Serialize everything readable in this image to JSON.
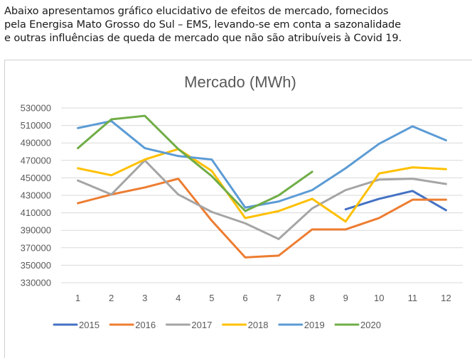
{
  "intro": {
    "lines": [
      "Abaixo apresentamos gráfico elucidativo de efeitos de mercado, fornecidos",
      "pela Energisa Mato Grosso do Sul – EMS, levando-se em conta a sazonalidade",
      "e outras influências de queda de mercado que não são atribuíveis à Covid 19."
    ]
  },
  "chart_data": {
    "type": "line",
    "title": "Mercado (MWh)",
    "xlabel": "",
    "ylabel": "",
    "categories": [
      "1",
      "2",
      "3",
      "4",
      "5",
      "6",
      "7",
      "8",
      "9",
      "10",
      "11",
      "12"
    ],
    "ylim": [
      330000,
      530000
    ],
    "yticks": [
      "530000",
      "510000",
      "490000",
      "470000",
      "450000",
      "430000",
      "410000",
      "390000",
      "370000",
      "350000",
      "330000"
    ],
    "ytick_values": [
      530000,
      510000,
      490000,
      470000,
      450000,
      430000,
      410000,
      390000,
      370000,
      350000,
      330000
    ],
    "grid": true,
    "legend_position": "bottom",
    "series": [
      {
        "name": "2015",
        "color": "#4472c4",
        "values": [
          null,
          null,
          null,
          null,
          null,
          null,
          null,
          null,
          414000,
          426000,
          435000,
          413000
        ]
      },
      {
        "name": "2016",
        "color": "#ed7d31",
        "values": [
          421000,
          431000,
          439000,
          449000,
          401000,
          359000,
          361000,
          391000,
          391000,
          404000,
          425000,
          425000
        ]
      },
      {
        "name": "2017",
        "color": "#a5a5a5",
        "values": [
          447000,
          431000,
          470000,
          431000,
          411000,
          398000,
          380000,
          415000,
          436000,
          448000,
          449000,
          443000
        ]
      },
      {
        "name": "2018",
        "color": "#ffc000",
        "values": [
          461000,
          453000,
          471000,
          483000,
          458000,
          404000,
          412000,
          426000,
          400000,
          455000,
          462000,
          460000
        ]
      },
      {
        "name": "2019",
        "color": "#5b9bd5",
        "values": [
          507000,
          515000,
          484000,
          475000,
          471000,
          416000,
          423000,
          436000,
          461000,
          489000,
          509000,
          493000
        ]
      },
      {
        "name": "2020",
        "color": "#70ad47",
        "values": [
          484000,
          517000,
          521000,
          483000,
          452000,
          412000,
          430000,
          457000,
          null,
          null,
          null,
          null
        ]
      }
    ]
  }
}
